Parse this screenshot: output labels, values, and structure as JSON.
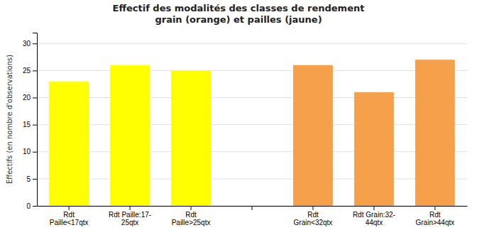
{
  "chart_data": {
    "type": "bar",
    "title": "Effectif des modalités des classes de rendement\ngrain (orange) et pailles (jaune)",
    "ylabel": "Effectifs (en nombre d'observations)",
    "categories": [
      "Rdt\nPaille<17qtx",
      "Rdt Paille:17-\n25qtx",
      "Rdt\nPaille>25qtx",
      null,
      "Rdt\nGrain<32qtx",
      "Rdt Grain:32-\n44qtx",
      "Rdt\nGrain>44qtx"
    ],
    "values": [
      23,
      26,
      25,
      0,
      26,
      21,
      27
    ],
    "colors": [
      "#FFFF00",
      "#FFFF00",
      "#FFFF00",
      "#FFFFFF",
      "#F5A04B",
      "#F5A04B",
      "#F5A04B"
    ],
    "ylim": [
      0,
      32
    ],
    "yticks": [
      0,
      5,
      10,
      15,
      20,
      25,
      30
    ],
    "grid": true
  }
}
